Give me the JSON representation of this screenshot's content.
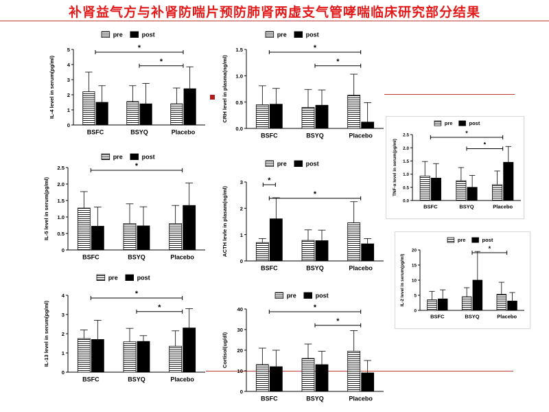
{
  "slide": {
    "title": "补肾益气方与补肾防喘片预防肺肾两虚支气管哮喘临床研究部分结果"
  },
  "colors": {
    "title": "#e21a1a",
    "rule": "#c23b3b",
    "pre_fill": "hatched-white",
    "post_fill": "#000000"
  },
  "legend_labels": [
    "pre",
    "post"
  ],
  "chart_data": [
    {
      "id": "il4",
      "type": "bar",
      "ylabel": "IL-4 level in serum(pg/ml)",
      "categories": [
        "BSFC",
        "BSYQ",
        "Placebo"
      ],
      "ylim": [
        0,
        5
      ],
      "yticks": [
        "0",
        "1",
        "2",
        "3",
        "4",
        "5"
      ],
      "yticks_v": [
        0,
        1,
        2,
        3,
        4,
        5
      ],
      "series": [
        {
          "name": "pre",
          "values": [
            2.2,
            1.55,
            1.4
          ],
          "err": [
            1.3,
            1.05,
            1.05
          ]
        },
        {
          "name": "post",
          "values": [
            1.5,
            1.4,
            2.4
          ],
          "err": [
            1.1,
            1.35,
            1.45
          ]
        }
      ],
      "sig": [
        {
          "from": 0,
          "to": 2,
          "label": "*"
        },
        {
          "from": 1,
          "to": 2,
          "label": "*"
        }
      ]
    },
    {
      "id": "il5",
      "type": "bar",
      "ylabel": "IL-5 level in serum(pg/ml)",
      "categories": [
        "BSFC",
        "BSYQ",
        "Placebo"
      ],
      "ylim": [
        0,
        2.5
      ],
      "yticks": [
        "0",
        "0.5",
        "1.0",
        "1.5",
        "2.0",
        "2.5"
      ],
      "yticks_v": [
        0,
        0.5,
        1,
        1.5,
        2,
        2.5
      ],
      "series": [
        {
          "name": "pre",
          "values": [
            1.27,
            0.8,
            0.8
          ],
          "err": [
            0.5,
            0.6,
            0.55
          ]
        },
        {
          "name": "post",
          "values": [
            0.72,
            0.73,
            1.35
          ],
          "err": [
            0.58,
            0.58,
            0.68
          ]
        }
      ],
      "sig": [
        {
          "from": 0,
          "to": 2,
          "label": "*"
        }
      ]
    },
    {
      "id": "il13",
      "type": "bar",
      "ylabel": "IL-13 level in serum(pg/ml)",
      "categories": [
        "BSFC",
        "BSYQ",
        "Placebo"
      ],
      "ylim": [
        0,
        4
      ],
      "yticks": [
        "0",
        "1",
        "2",
        "3",
        "4"
      ],
      "yticks_v": [
        0,
        1,
        2,
        3,
        4
      ],
      "series": [
        {
          "name": "pre",
          "values": [
            1.75,
            1.58,
            1.35
          ],
          "err": [
            0.45,
            0.7,
            0.8
          ]
        },
        {
          "name": "post",
          "values": [
            1.7,
            1.6,
            2.3
          ],
          "err": [
            1.0,
            0.3,
            1.0
          ]
        }
      ],
      "sig": [
        {
          "from": 0,
          "to": 2,
          "label": "*"
        },
        {
          "from": 1,
          "to": 2,
          "label": "*"
        }
      ]
    },
    {
      "id": "crh",
      "type": "bar",
      "ylabel": "CRH level in plasma(ng/ml)",
      "categories": [
        "BSFC",
        "BSYQ",
        "Placebo"
      ],
      "ylim": [
        0,
        1.5
      ],
      "yticks": [
        "0.0",
        "0.5",
        "1.0",
        "1.5"
      ],
      "yticks_v": [
        0,
        0.5,
        1.0,
        1.5
      ],
      "series": [
        {
          "name": "pre",
          "values": [
            0.45,
            0.4,
            0.63
          ],
          "err": [
            0.36,
            0.34,
            0.4
          ]
        },
        {
          "name": "post",
          "values": [
            0.46,
            0.44,
            0.12
          ],
          "err": [
            0.3,
            0.29,
            0.37
          ]
        }
      ],
      "sig": [
        {
          "from": 0,
          "to": 2,
          "label": "*"
        },
        {
          "from": 1,
          "to": 2,
          "label": "*"
        }
      ]
    },
    {
      "id": "acth",
      "type": "bar",
      "ylabel": "ACTH levle in plasam(ng/ml)",
      "categories": [
        "BSFC",
        "BSYQ",
        "Placebo"
      ],
      "ylim": [
        0,
        3
      ],
      "yticks": [
        "0",
        "1",
        "2",
        "3"
      ],
      "yticks_v": [
        0,
        1,
        2,
        3
      ],
      "series": [
        {
          "name": "pre",
          "values": [
            0.7,
            0.78,
            1.45
          ],
          "err": [
            0.15,
            0.4,
            0.8
          ]
        },
        {
          "name": "post",
          "values": [
            1.6,
            0.77,
            0.65
          ],
          "err": [
            0.8,
            0.4,
            0.2
          ]
        }
      ],
      "sig": [
        {
          "from": 0,
          "to": 0,
          "label": "*"
        },
        {
          "from": 0,
          "to": 2,
          "label": "*"
        }
      ]
    },
    {
      "id": "cortisol",
      "type": "bar",
      "ylabel": "Cortisol(ug/dl)",
      "categories": [
        "BSFC",
        "BSYQ",
        "Placebo"
      ],
      "ylim": [
        0,
        40
      ],
      "yticks": [
        "0",
        "10",
        "20",
        "30",
        "40"
      ],
      "yticks_v": [
        0,
        10,
        20,
        30,
        40
      ],
      "series": [
        {
          "name": "pre",
          "values": [
            13,
            16,
            19.5
          ],
          "err": [
            8,
            7,
            10
          ]
        },
        {
          "name": "post",
          "values": [
            12,
            13,
            9
          ],
          "err": [
            8,
            6.5,
            6
          ]
        }
      ],
      "sig": [
        {
          "from": 0,
          "to": 2,
          "label": "*"
        },
        {
          "from": 1,
          "to": 2,
          "label": "*"
        }
      ]
    },
    {
      "id": "tnfa",
      "type": "bar",
      "ylabel": "TNF-α level in serum(pg/ml)",
      "categories": [
        "BSFC",
        "BSYQ",
        "Placebo"
      ],
      "ylim": [
        0,
        2.5
      ],
      "yticks": [
        "0.0",
        "0.5",
        "1.0",
        "1.5",
        "2.0",
        "2.5"
      ],
      "yticks_v": [
        0,
        0.5,
        1,
        1.5,
        2,
        2.5
      ],
      "series": [
        {
          "name": "pre",
          "values": [
            0.93,
            0.75,
            0.6
          ],
          "err": [
            0.55,
            0.5,
            0.52
          ]
        },
        {
          "name": "post",
          "values": [
            0.85,
            0.5,
            1.45
          ],
          "err": [
            0.55,
            0.45,
            0.6
          ]
        }
      ],
      "sig": [
        {
          "from": 0,
          "to": 2,
          "label": "*"
        },
        {
          "from": 1,
          "to": 2,
          "label": "*"
        }
      ]
    },
    {
      "id": "il2",
      "type": "bar",
      "ylabel": "IL-2 level in serum(pg/ml)",
      "categories": [
        "BSFC",
        "BSYQ",
        "Placebo"
      ],
      "ylim": [
        0,
        20
      ],
      "yticks": [
        "0",
        "5",
        "10",
        "15",
        "20"
      ],
      "yticks_v": [
        0,
        5,
        10,
        15,
        20
      ],
      "series": [
        {
          "name": "pre",
          "values": [
            3.5,
            4.5,
            5.3
          ],
          "err": [
            2.8,
            3,
            4
          ]
        },
        {
          "name": "post",
          "values": [
            3.8,
            10,
            3.1
          ],
          "err": [
            3,
            9.5,
            2.8
          ]
        }
      ],
      "sig": [
        {
          "from": 1,
          "to": 2,
          "label": "*"
        }
      ]
    }
  ]
}
